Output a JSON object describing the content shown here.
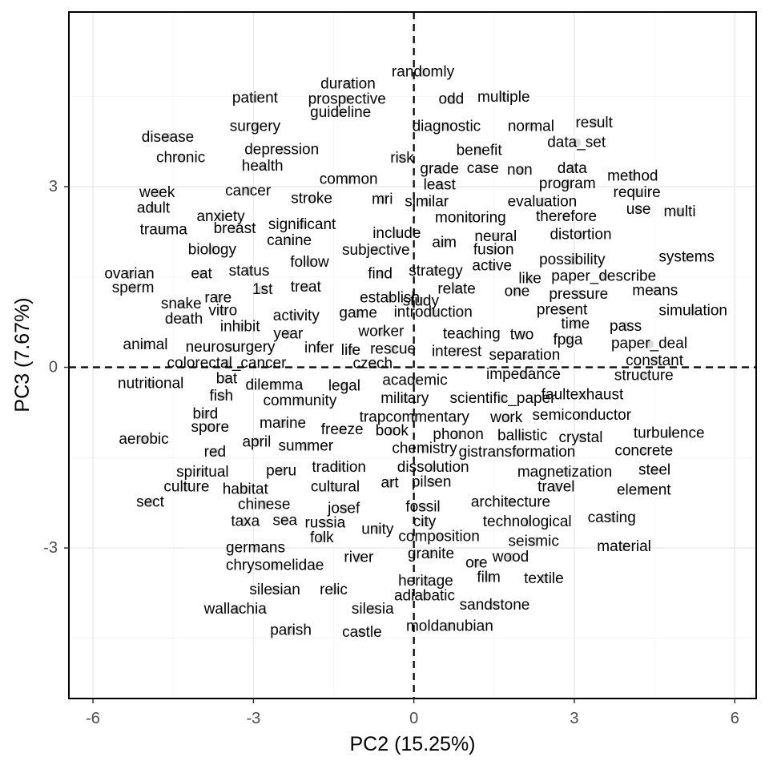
{
  "chart_data": {
    "type": "scatter",
    "title": "",
    "xlabel": "PC2 (15.25%)",
    "ylabel": "PC3 (7.67%)",
    "xlim": [
      -6.45,
      6.4
    ],
    "ylim": [
      -5.5,
      5.9
    ],
    "xticks": [
      -6,
      -3,
      0,
      3,
      6
    ],
    "yticks": [
      -3,
      0,
      3
    ],
    "grid": true,
    "reference_lines": {
      "x": 0,
      "y": 0,
      "style": "dashed"
    },
    "point_color": "#d3d3d3",
    "words": [
      {
        "label": "randomly",
        "x": 0.17,
        "y": 4.9
      },
      {
        "label": "duration",
        "x": -1.23,
        "y": 4.7
      },
      {
        "label": "patient",
        "x": -2.97,
        "y": 4.47
      },
      {
        "label": "prospective",
        "x": -1.25,
        "y": 4.45
      },
      {
        "label": "odd",
        "x": 0.7,
        "y": 4.45
      },
      {
        "label": "multiple",
        "x": 1.68,
        "y": 4.48
      },
      {
        "label": "guideline",
        "x": -1.37,
        "y": 4.23
      },
      {
        "label": "surgery",
        "x": -2.97,
        "y": 4.0
      },
      {
        "label": "diagnostic",
        "x": 0.61,
        "y": 4.0
      },
      {
        "label": "normal",
        "x": 2.19,
        "y": 4.0
      },
      {
        "label": "result",
        "x": 3.37,
        "y": 4.06
      },
      {
        "label": "disease",
        "x": -4.6,
        "y": 3.82
      },
      {
        "label": "depression",
        "x": -2.47,
        "y": 3.61
      },
      {
        "label": "benefit",
        "x": 1.22,
        "y": 3.6
      },
      {
        "label": "data_set",
        "x": 3.04,
        "y": 3.73
      },
      {
        "label": "chronic",
        "x": -4.36,
        "y": 3.48
      },
      {
        "label": "risk",
        "x": -0.22,
        "y": 3.47
      },
      {
        "label": "health",
        "x": -2.83,
        "y": 3.34
      },
      {
        "label": "grade",
        "x": 0.48,
        "y": 3.29
      },
      {
        "label": "case",
        "x": 1.29,
        "y": 3.3
      },
      {
        "label": "non",
        "x": 1.98,
        "y": 3.27
      },
      {
        "label": "data",
        "x": 2.96,
        "y": 3.3
      },
      {
        "label": "method",
        "x": 4.09,
        "y": 3.17
      },
      {
        "label": "common",
        "x": -1.22,
        "y": 3.12
      },
      {
        "label": "least",
        "x": 0.48,
        "y": 3.03
      },
      {
        "label": "program",
        "x": 2.87,
        "y": 3.05
      },
      {
        "label": "week",
        "x": -4.8,
        "y": 2.9
      },
      {
        "label": "cancer",
        "x": -3.1,
        "y": 2.93
      },
      {
        "label": "require",
        "x": 4.17,
        "y": 2.9
      },
      {
        "label": "stroke",
        "x": -1.91,
        "y": 2.8
      },
      {
        "label": "mri",
        "x": -0.59,
        "y": 2.79
      },
      {
        "label": "similar",
        "x": 0.24,
        "y": 2.75
      },
      {
        "label": "evaluation",
        "x": 2.4,
        "y": 2.75
      },
      {
        "label": "adult",
        "x": -4.87,
        "y": 2.64
      },
      {
        "label": "use",
        "x": 4.2,
        "y": 2.62
      },
      {
        "label": "multi",
        "x": 4.97,
        "y": 2.58
      },
      {
        "label": "anxiety",
        "x": -3.61,
        "y": 2.5
      },
      {
        "label": "monitoring",
        "x": 1.06,
        "y": 2.48
      },
      {
        "label": "therefore",
        "x": 2.85,
        "y": 2.5
      },
      {
        "label": "significant",
        "x": -2.09,
        "y": 2.37
      },
      {
        "label": "trauma",
        "x": -4.68,
        "y": 2.28
      },
      {
        "label": "breast",
        "x": -3.35,
        "y": 2.3
      },
      {
        "label": "include",
        "x": -0.32,
        "y": 2.22
      },
      {
        "label": "distortion",
        "x": 3.12,
        "y": 2.2
      },
      {
        "label": "neural",
        "x": 1.53,
        "y": 2.17
      },
      {
        "label": "canine",
        "x": -2.33,
        "y": 2.1
      },
      {
        "label": "aim",
        "x": 0.57,
        "y": 2.07
      },
      {
        "label": "biology",
        "x": -3.77,
        "y": 1.95
      },
      {
        "label": "subjective",
        "x": -0.71,
        "y": 1.94
      },
      {
        "label": "fusion",
        "x": 1.49,
        "y": 1.95
      },
      {
        "label": "systems",
        "x": 5.1,
        "y": 1.83
      },
      {
        "label": "follow",
        "x": -1.95,
        "y": 1.74
      },
      {
        "label": "possibility",
        "x": 2.96,
        "y": 1.78
      },
      {
        "label": "status",
        "x": -3.08,
        "y": 1.6
      },
      {
        "label": "strategy",
        "x": 0.41,
        "y": 1.6
      },
      {
        "label": "active",
        "x": 1.46,
        "y": 1.68
      },
      {
        "label": "ovarian",
        "x": -5.32,
        "y": 1.55
      },
      {
        "label": "eat",
        "x": -3.97,
        "y": 1.55
      },
      {
        "label": "find",
        "x": -0.63,
        "y": 1.55
      },
      {
        "label": "paper_describe",
        "x": 3.55,
        "y": 1.51
      },
      {
        "label": "like",
        "x": 2.17,
        "y": 1.47
      },
      {
        "label": "sperm",
        "x": -5.25,
        "y": 1.32
      },
      {
        "label": "1st",
        "x": -2.83,
        "y": 1.29
      },
      {
        "label": "treat",
        "x": -2.02,
        "y": 1.33
      },
      {
        "label": "relate",
        "x": 0.8,
        "y": 1.3
      },
      {
        "label": "one",
        "x": 1.93,
        "y": 1.26
      },
      {
        "label": "means",
        "x": 4.51,
        "y": 1.27
      },
      {
        "label": "rare",
        "x": -3.66,
        "y": 1.15
      },
      {
        "label": "establish",
        "x": -0.45,
        "y": 1.15
      },
      {
        "label": "pressure",
        "x": 3.08,
        "y": 1.21
      },
      {
        "label": "study",
        "x": 0.13,
        "y": 1.1
      },
      {
        "label": "snake",
        "x": -4.35,
        "y": 1.05
      },
      {
        "label": "present",
        "x": 2.77,
        "y": 0.95
      },
      {
        "label": "vitro",
        "x": -3.57,
        "y": 0.94
      },
      {
        "label": "game",
        "x": -1.04,
        "y": 0.9
      },
      {
        "label": "introduction",
        "x": 0.36,
        "y": 0.91
      },
      {
        "label": "simulation",
        "x": 5.22,
        "y": 0.94
      },
      {
        "label": "activity",
        "x": -2.2,
        "y": 0.85
      },
      {
        "label": "death",
        "x": -4.3,
        "y": 0.8
      },
      {
        "label": "time",
        "x": 3.02,
        "y": 0.72
      },
      {
        "label": "pass",
        "x": 3.96,
        "y": 0.68
      },
      {
        "label": "inhibit",
        "x": -3.25,
        "y": 0.67
      },
      {
        "label": "worker",
        "x": -0.61,
        "y": 0.59
      },
      {
        "label": "teaching",
        "x": 1.08,
        "y": 0.55
      },
      {
        "label": "two",
        "x": 2.02,
        "y": 0.54
      },
      {
        "label": "year",
        "x": -2.35,
        "y": 0.55
      },
      {
        "label": "fpga",
        "x": 2.88,
        "y": 0.45
      },
      {
        "label": "paper_deal",
        "x": 4.4,
        "y": 0.39
      },
      {
        "label": "animal",
        "x": -5.02,
        "y": 0.37
      },
      {
        "label": "neurosurgery",
        "x": -3.43,
        "y": 0.33
      },
      {
        "label": "infer",
        "x": -1.77,
        "y": 0.32
      },
      {
        "label": "life",
        "x": -1.18,
        "y": 0.28
      },
      {
        "label": "rescue",
        "x": -0.39,
        "y": 0.3
      },
      {
        "label": "interest",
        "x": 0.8,
        "y": 0.26
      },
      {
        "label": "separation",
        "x": 2.07,
        "y": 0.2
      },
      {
        "label": "constant",
        "x": 4.5,
        "y": 0.11
      },
      {
        "label": "colorectal_cancer",
        "x": -3.5,
        "y": 0.07
      },
      {
        "label": "czech",
        "x": -0.77,
        "y": 0.06
      },
      {
        "label": "nutritional",
        "x": -4.92,
        "y": -0.27
      },
      {
        "label": "bat",
        "x": -3.5,
        "y": -0.19
      },
      {
        "label": "dilemma",
        "x": -2.61,
        "y": -0.3
      },
      {
        "label": "legal",
        "x": -1.3,
        "y": -0.31
      },
      {
        "label": "academic",
        "x": 0.02,
        "y": -0.22
      },
      {
        "label": "impedance",
        "x": 2.05,
        "y": -0.12
      },
      {
        "label": "structure",
        "x": 4.3,
        "y": -0.14
      },
      {
        "label": "fish",
        "x": -3.6,
        "y": -0.48
      },
      {
        "label": "community",
        "x": -2.13,
        "y": -0.56
      },
      {
        "label": "military",
        "x": -0.17,
        "y": -0.52
      },
      {
        "label": "scientific_paper",
        "x": 1.66,
        "y": -0.52
      },
      {
        "label": "faultexhaust",
        "x": 3.15,
        "y": -0.46
      },
      {
        "label": "bird",
        "x": -3.9,
        "y": -0.78
      },
      {
        "label": "trapcommentary",
        "x": 0.01,
        "y": -0.83
      },
      {
        "label": "work",
        "x": 1.73,
        "y": -0.84
      },
      {
        "label": "semiconductor",
        "x": 3.14,
        "y": -0.8
      },
      {
        "label": "marine",
        "x": -2.45,
        "y": -0.93
      },
      {
        "label": "spore",
        "x": -3.81,
        "y": -1.0
      },
      {
        "label": "freeze",
        "x": -1.34,
        "y": -1.04
      },
      {
        "label": "book",
        "x": -0.41,
        "y": -1.06
      },
      {
        "label": "phonon",
        "x": 0.83,
        "y": -1.12
      },
      {
        "label": "ballistic",
        "x": 2.03,
        "y": -1.14
      },
      {
        "label": "crystal",
        "x": 3.12,
        "y": -1.17
      },
      {
        "label": "turbulence",
        "x": 4.77,
        "y": -1.1
      },
      {
        "label": "aerobic",
        "x": -5.05,
        "y": -1.2
      },
      {
        "label": "april",
        "x": -2.94,
        "y": -1.24
      },
      {
        "label": "summer",
        "x": -2.02,
        "y": -1.31
      },
      {
        "label": "chemistry",
        "x": 0.2,
        "y": -1.35
      },
      {
        "label": "gistransformation",
        "x": 1.93,
        "y": -1.41
      },
      {
        "label": "concrete",
        "x": 4.3,
        "y": -1.39
      },
      {
        "label": "red",
        "x": -3.72,
        "y": -1.41
      },
      {
        "label": "tradition",
        "x": -1.4,
        "y": -1.66
      },
      {
        "label": "dissolution",
        "x": 0.36,
        "y": -1.66
      },
      {
        "label": "spiritual",
        "x": -3.95,
        "y": -1.74
      },
      {
        "label": "peru",
        "x": -2.48,
        "y": -1.72
      },
      {
        "label": "magnetization",
        "x": 2.82,
        "y": -1.74
      },
      {
        "label": "steel",
        "x": 4.5,
        "y": -1.71
      },
      {
        "label": "culture",
        "x": -4.25,
        "y": -1.99
      },
      {
        "label": "habitat",
        "x": -3.15,
        "y": -2.03
      },
      {
        "label": "cultural",
        "x": -1.47,
        "y": -1.99
      },
      {
        "label": "art",
        "x": -0.45,
        "y": -1.92
      },
      {
        "label": "pilsen",
        "x": 0.33,
        "y": -1.91
      },
      {
        "label": "travel",
        "x": 2.66,
        "y": -1.99
      },
      {
        "label": "element",
        "x": 4.3,
        "y": -2.04
      },
      {
        "label": "sect",
        "x": -4.93,
        "y": -2.24
      },
      {
        "label": "chinese",
        "x": -2.8,
        "y": -2.28
      },
      {
        "label": "architecture",
        "x": 1.81,
        "y": -2.24
      },
      {
        "label": "josef",
        "x": -1.31,
        "y": -2.35
      },
      {
        "label": "fossil",
        "x": 0.17,
        "y": -2.32
      },
      {
        "label": "casting",
        "x": 3.7,
        "y": -2.5
      },
      {
        "label": "taxa",
        "x": -3.15,
        "y": -2.56
      },
      {
        "label": "sea",
        "x": -2.41,
        "y": -2.55
      },
      {
        "label": "russia",
        "x": -1.66,
        "y": -2.59
      },
      {
        "label": "city",
        "x": 0.2,
        "y": -2.57
      },
      {
        "label": "technological",
        "x": 2.12,
        "y": -2.57
      },
      {
        "label": "unity",
        "x": -0.68,
        "y": -2.69
      },
      {
        "label": "folk",
        "x": -1.72,
        "y": -2.83
      },
      {
        "label": "composition",
        "x": 0.47,
        "y": -2.81
      },
      {
        "label": "seismic",
        "x": 2.24,
        "y": -2.89
      },
      {
        "label": "germans",
        "x": -2.96,
        "y": -3.0
      },
      {
        "label": "material",
        "x": 3.93,
        "y": -2.98
      },
      {
        "label": "river",
        "x": -1.03,
        "y": -3.16
      },
      {
        "label": "granite",
        "x": 0.32,
        "y": -3.1
      },
      {
        "label": "ore",
        "x": 1.17,
        "y": -3.25
      },
      {
        "label": "wood",
        "x": 1.81,
        "y": -3.15
      },
      {
        "label": "chrysomelidae",
        "x": -2.6,
        "y": -3.29
      },
      {
        "label": "heritage",
        "x": 0.22,
        "y": -3.55
      },
      {
        "label": "film",
        "x": 1.4,
        "y": -3.49
      },
      {
        "label": "textile",
        "x": 2.43,
        "y": -3.51
      },
      {
        "label": "silesian",
        "x": -2.6,
        "y": -3.7
      },
      {
        "label": "relic",
        "x": -1.5,
        "y": -3.7
      },
      {
        "label": "adiabatic",
        "x": 0.2,
        "y": -3.8
      },
      {
        "label": "sandstone",
        "x": 1.51,
        "y": -3.95
      },
      {
        "label": "wallachia",
        "x": -3.34,
        "y": -4.02
      },
      {
        "label": "silesia",
        "x": -0.77,
        "y": -4.02
      },
      {
        "label": "parish",
        "x": -2.3,
        "y": -4.37
      },
      {
        "label": "castle",
        "x": -0.97,
        "y": -4.4
      },
      {
        "label": "moldanubian",
        "x": 0.67,
        "y": -4.3
      }
    ]
  }
}
